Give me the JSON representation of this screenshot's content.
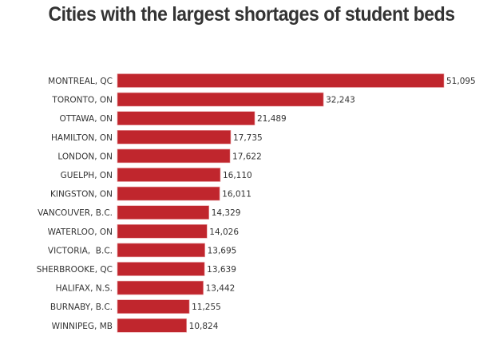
{
  "chart_data": {
    "type": "bar",
    "orientation": "horizontal",
    "title": "Cities with the largest shortages of student beds",
    "xlabel": "",
    "ylabel": "",
    "categories": [
      "MONTREAL, QC",
      "TORONTO, ON",
      "OTTAWA, ON",
      "HAMILTON, ON",
      "LONDON, ON",
      "GUELPH, ON",
      "KINGSTON, ON",
      "VANCOUVER, B.C.",
      "WATERLOO, ON",
      "VICTORIA,  B.C.",
      "SHERBROOKE, QC",
      "HALIFAX, N.S.",
      "BURNABY, B.C.",
      "WINNIPEG, MB"
    ],
    "values": [
      51095,
      32243,
      21489,
      17735,
      17622,
      16110,
      16011,
      14329,
      14026,
      13695,
      13639,
      13442,
      11255,
      10824
    ],
    "value_labels": [
      "51,095",
      "32,243",
      "21,489",
      "17,735",
      "17,622",
      "16,110",
      "16,011",
      "14,329",
      "14,026",
      "13,695",
      "13,639",
      "13,442",
      "11,255",
      "10,824"
    ],
    "xlim": [
      0,
      51095
    ],
    "grid": false,
    "legend": "none",
    "bar_color": "#c0262d"
  }
}
